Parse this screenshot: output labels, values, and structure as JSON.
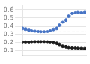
{
  "chart_data": {
    "type": "scatter",
    "x": [
      1960,
      1963,
      1966,
      1969,
      1972,
      1975,
      1978,
      1981,
      1984,
      1987,
      1990,
      1993,
      1996,
      1999,
      2002,
      2005,
      2008,
      2011,
      2014,
      2017,
      2020,
      2022
    ],
    "series": [
      {
        "color": "#4472c4",
        "marker": "circle",
        "values": [
          0.375,
          0.365,
          0.355,
          0.345,
          0.34,
          0.335,
          0.332,
          0.332,
          0.335,
          0.345,
          0.36,
          0.375,
          0.41,
          0.45,
          0.475,
          0.52,
          0.555,
          0.565,
          0.57,
          0.565,
          0.57,
          0.57
        ]
      },
      {
        "color": "#1a1a1a",
        "marker": "circle",
        "values": [
          0.205,
          0.205,
          0.205,
          0.208,
          0.21,
          0.21,
          0.21,
          0.21,
          0.208,
          0.205,
          0.2,
          0.19,
          0.175,
          0.158,
          0.15,
          0.142,
          0.138,
          0.138,
          0.135,
          0.132,
          0.13,
          0.13
        ]
      }
    ],
    "annotations": [
      {
        "y": 0.33,
        "color": "#cccccc",
        "line_style": "dashed"
      }
    ],
    "xlim": [
      1960,
      2022
    ],
    "ylim": [
      0.05,
      0.65
    ],
    "yticks": [
      0.1,
      0.2,
      0.3,
      0.4,
      0.5,
      0.6
    ],
    "tick_labels": "y",
    "grid": "y"
  }
}
